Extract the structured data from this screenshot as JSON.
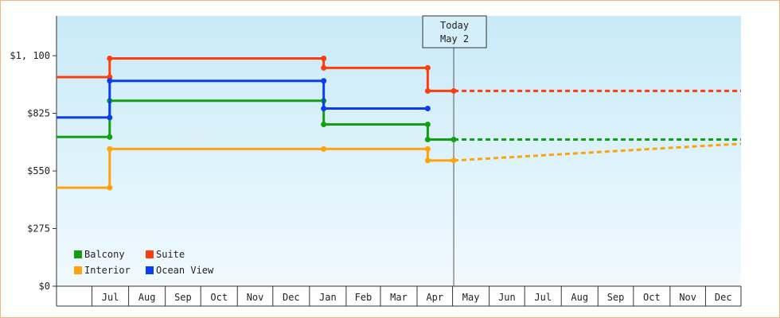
{
  "chart_data": {
    "type": "line",
    "step": true,
    "y_tick_labels": [
      "$0",
      "$275",
      "$550",
      "$825",
      "$1, 100"
    ],
    "y_tick_values": [
      0,
      275,
      550,
      825,
      1100
    ],
    "ylim": [
      0,
      1290
    ],
    "x_tick_labels": [
      "Jul",
      "Aug",
      "Sep",
      "Oct",
      "Nov",
      "Dec",
      "Jan",
      "Feb",
      "Mar",
      "Apr",
      "May",
      "Jun",
      "Jul",
      "Aug",
      "Sep",
      "Oct",
      "Nov",
      "Dec"
    ],
    "x_range": [
      "2023-06-01",
      "2024-12-31"
    ],
    "today_marker": {
      "line1": "Today",
      "line2": "May 2",
      "date": "2024-05-02"
    },
    "legend": {
      "position": "bottom-left"
    },
    "series": [
      {
        "name": "Balcony",
        "color": "#11a011",
        "points": [
          [
            "2023-06-01",
            712
          ],
          [
            "2023-07-16",
            712
          ],
          [
            "2023-07-16",
            885
          ],
          [
            "2024-01-13",
            885
          ],
          [
            "2024-01-13",
            772
          ],
          [
            "2024-04-10",
            772
          ],
          [
            "2024-04-10",
            700
          ],
          [
            "2024-05-02",
            700
          ]
        ],
        "forecast": [
          [
            "2024-05-02",
            700
          ],
          [
            "2024-12-31",
            700
          ]
        ]
      },
      {
        "name": "Suite",
        "color": "#ff3c0c",
        "points": [
          [
            "2023-06-01",
            998
          ],
          [
            "2023-07-16",
            998
          ],
          [
            "2023-07-16",
            1087
          ],
          [
            "2024-01-13",
            1087
          ],
          [
            "2024-01-13",
            1042
          ],
          [
            "2024-04-10",
            1042
          ],
          [
            "2024-04-10",
            932
          ],
          [
            "2024-05-02",
            932
          ]
        ],
        "forecast": [
          [
            "2024-05-02",
            932
          ],
          [
            "2024-12-31",
            932
          ]
        ]
      },
      {
        "name": "Interior",
        "color": "#ffa30c",
        "points": [
          [
            "2023-06-01",
            470
          ],
          [
            "2023-07-16",
            470
          ],
          [
            "2023-07-16",
            655
          ],
          [
            "2024-01-13",
            655
          ],
          [
            "2024-04-10",
            655
          ],
          [
            "2024-04-10",
            600
          ],
          [
            "2024-05-02",
            600
          ]
        ],
        "forecast": [
          [
            "2024-05-02",
            600
          ],
          [
            "2024-12-31",
            680
          ]
        ]
      },
      {
        "name": "Ocean View",
        "color": "#0c3cf0",
        "points": [
          [
            "2023-06-01",
            805
          ],
          [
            "2023-07-16",
            805
          ],
          [
            "2023-07-16",
            980
          ],
          [
            "2024-01-13",
            980
          ],
          [
            "2024-01-13",
            848
          ],
          [
            "2024-04-10",
            848
          ]
        ],
        "forecast": []
      }
    ]
  }
}
